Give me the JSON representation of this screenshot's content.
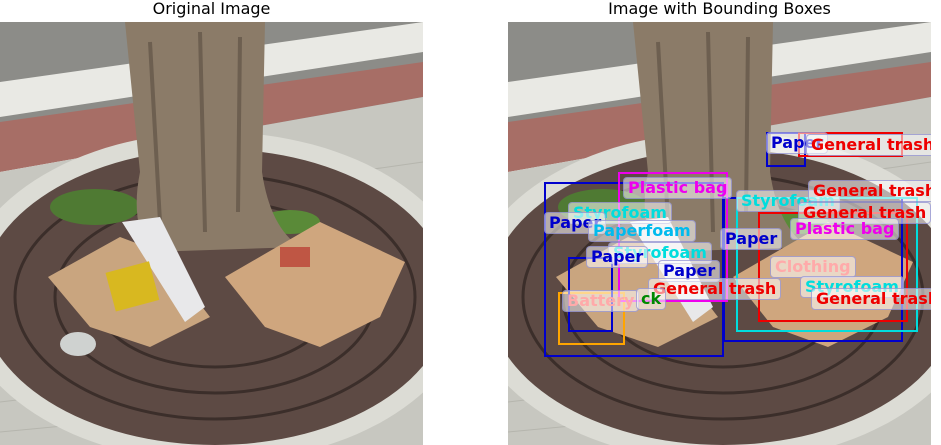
{
  "titles": {
    "left": "Original Image",
    "right": "Image with Bounding Boxes"
  },
  "colors": {
    "paper": "#0000cc",
    "general_trash": "#ee0000",
    "plastic_bag": "#ee00ee",
    "styrofoam": "#00dddd",
    "paperfoam": "#00bbee",
    "clothing": "#ffaaaa",
    "battery": "#ffaaaa",
    "paper_pack": "#008800",
    "glass": "#ffa500"
  },
  "labels": {
    "paper_top": "Paper",
    "general_trash_top": "General trash",
    "plastic_bag_1": "Plastic bag",
    "styrofoam_1": "Styrofoam",
    "styrofoam_2": "Styrofoam",
    "styrofoam_3": "Styrofoam",
    "styrofoam_4": "Styrofoam",
    "general_trash_2": "General trash",
    "general_trash_3": "General trash",
    "paper_2": "Paper",
    "paper_3": "Paper",
    "paper_4": "Paper",
    "paper_5": "Paper",
    "paperfoam_1": "Paperfoam",
    "plastic_bag_2": "Plastic bag",
    "clothing_1": "Clothing",
    "battery_1": "Battery",
    "paper_pack_1": "ck",
    "general_trash_4": "General trash",
    "general_trash_5": "General trash"
  }
}
